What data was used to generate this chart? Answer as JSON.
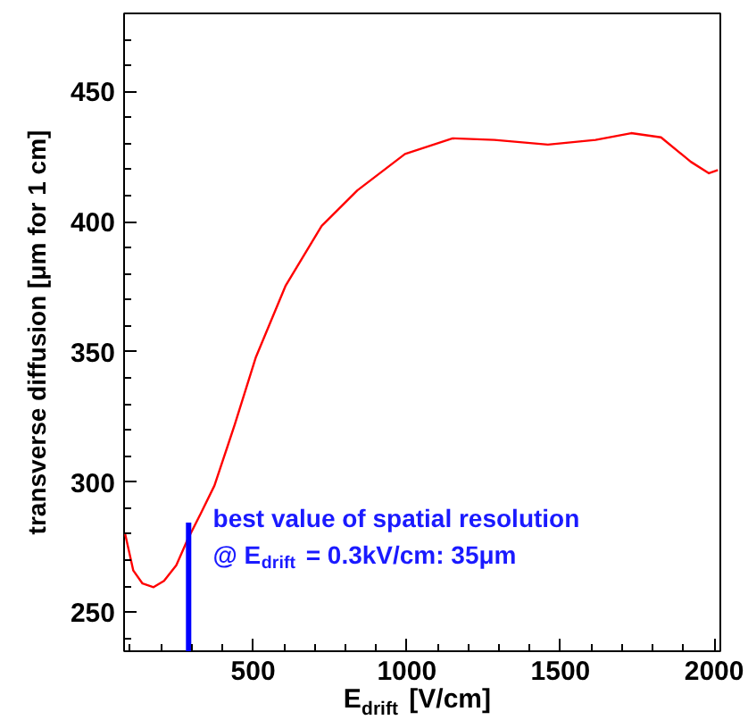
{
  "chart_data": {
    "type": "line",
    "xlabel": "E$_{drift}$ [V/cm]",
    "ylabel": "transverse diffusion [μm for 1 cm]",
    "xlim": [
      80,
      2020
    ],
    "ylim": [
      235,
      480
    ],
    "xticks": [
      500,
      1000,
      1500,
      2000
    ],
    "yticks": [
      250,
      300,
      350,
      400,
      450
    ],
    "grid": false,
    "series": [
      {
        "color": "#ff0000",
        "x": [
          83,
          110,
          140,
          176,
          210,
          250,
          287,
          330,
          374,
          440,
          509,
          606,
          723,
          839,
          994,
          1149,
          1285,
          1459,
          1614,
          1730,
          1827,
          1924,
          1983,
          2012
        ],
        "values": [
          280.3,
          266,
          261,
          259.6,
          262,
          268,
          278,
          288,
          298.6,
          322,
          348,
          375.5,
          398.4,
          412,
          426,
          432,
          431.4,
          429.6,
          431.4,
          434,
          432.4,
          423,
          418.6,
          419.8
        ]
      },
      {
        "color": "#0000ff",
        "x": [
          290,
          290
        ],
        "values": [
          235,
          284.4
        ]
      }
    ],
    "annotations": [
      "best value of spatial resolution",
      "@ E$_{drift}$ = 0.3kV/cm: 35μm"
    ]
  }
}
